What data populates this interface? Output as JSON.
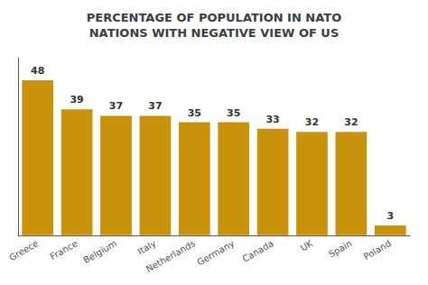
{
  "chart_data": {
    "type": "bar",
    "title": "PERCENTAGE OF POPULATION IN NATO\nNATIONS WITH NEGATIVE VIEW OF US",
    "categories": [
      "Greece",
      "France",
      "Belgium",
      "Italy",
      "Netherlands",
      "Germany",
      "Canada",
      "UK",
      "Spain",
      "Poland"
    ],
    "values": [
      48,
      39,
      37,
      37,
      35,
      35,
      33,
      32,
      32,
      3
    ],
    "color": "#C8920A",
    "ylim": [
      0,
      55
    ],
    "yticks": [],
    "grid": false,
    "data_labels": true,
    "tick_labels": "x"
  }
}
